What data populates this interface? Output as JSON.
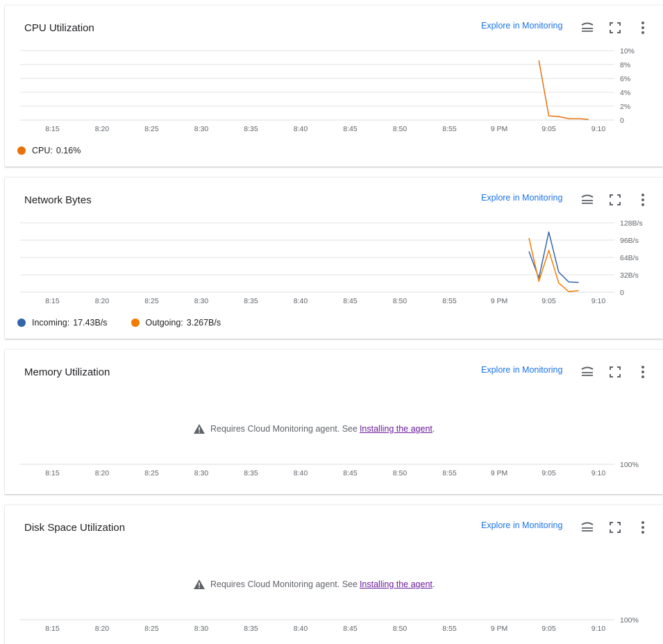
{
  "explore_label": "Explore in Monitoring",
  "x_ticks": [
    "8:15",
    "8:20",
    "8:25",
    "8:30",
    "8:35",
    "8:40",
    "8:45",
    "8:50",
    "8:55",
    "9 PM",
    "9:05",
    "9:10"
  ],
  "cards": [
    {
      "title": "CPU Utilization",
      "chart_data": {
        "type": "line",
        "title": "CPU Utilization",
        "xlabel": "",
        "ylabel": "",
        "y_ticks": [
          "10%",
          "8%",
          "6%",
          "4%",
          "2%",
          "0"
        ],
        "ylim": [
          0,
          10
        ],
        "x": [
          "9:04",
          "9:05",
          "9:06",
          "9:07",
          "9:08",
          "9:09"
        ],
        "series": [
          {
            "name": "CPU",
            "color": "#e8710a",
            "values": [
              8.6,
              0.6,
              0.5,
              0.2,
              0.2,
              0.1
            ]
          }
        ]
      },
      "legend": [
        {
          "label": "CPU:",
          "value": "0.16%",
          "color": "#e8710a"
        }
      ]
    },
    {
      "title": "Network Bytes",
      "chart_data": {
        "type": "line",
        "title": "Network Bytes",
        "xlabel": "",
        "ylabel": "",
        "y_ticks": [
          "128B/s",
          "96B/s",
          "64B/s",
          "32B/s",
          "0"
        ],
        "ylim": [
          0,
          128
        ],
        "x": [
          "9:03",
          "9:04",
          "9:05",
          "9:06",
          "9:07",
          "9:08"
        ],
        "series": [
          {
            "name": "Incoming",
            "color": "#3366aa",
            "values": [
              75,
              26,
              111,
              37,
              19,
              18
            ]
          },
          {
            "name": "Outgoing",
            "color": "#f57c00",
            "values": [
              100,
              20,
              77,
              17,
              1,
              3
            ]
          }
        ]
      },
      "legend": [
        {
          "label": "Incoming:",
          "value": "17.43B/s",
          "color": "#3366aa"
        },
        {
          "label": "Outgoing:",
          "value": "3.267B/s",
          "color": "#f57c00"
        }
      ]
    },
    {
      "title": "Memory Utilization",
      "chart_data": {
        "type": "line",
        "title": "Memory Utilization",
        "y_ticks": [
          "100%"
        ],
        "series": []
      },
      "warning": {
        "text": "Requires Cloud Monitoring agent. See",
        "link": "Installing the agent",
        "suffix": "."
      }
    },
    {
      "title": "Disk Space Utilization",
      "chart_data": {
        "type": "line",
        "title": "Disk Space Utilization",
        "y_ticks": [
          "100%"
        ],
        "series": []
      },
      "warning": {
        "text": "Requires Cloud Monitoring agent. See",
        "link": "Installing the agent",
        "suffix": "."
      }
    }
  ]
}
